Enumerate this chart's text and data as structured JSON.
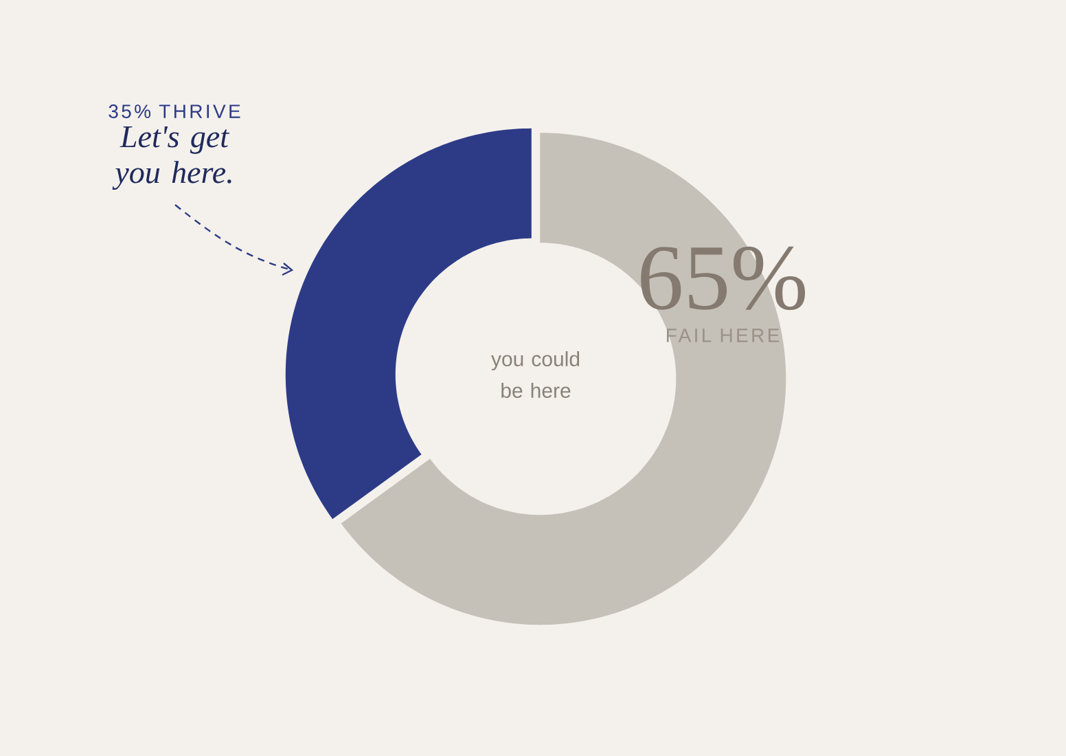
{
  "chart_data": {
    "type": "donut",
    "categories": [
      "FAIL HERE",
      "THRIVE"
    ],
    "values": [
      65,
      35
    ],
    "colors": [
      "#c5c1b8",
      "#2d3b87"
    ],
    "value_labels": [
      "65%",
      "35%"
    ],
    "annotations": [
      "Let's get you here.",
      "you could be here"
    ]
  }
}
